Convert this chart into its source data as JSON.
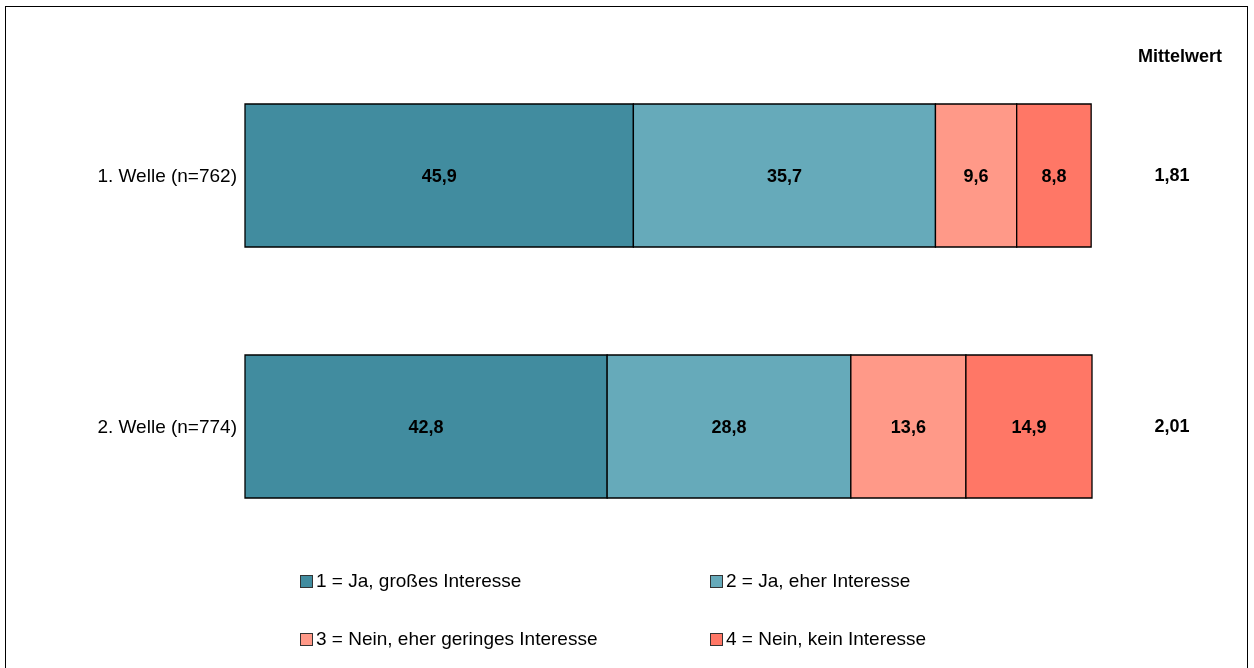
{
  "chart_data": {
    "type": "bar",
    "orientation": "horizontal",
    "stacked": true,
    "legend": "bottom",
    "grid": false,
    "categories": [
      "1. Welle (n=762)",
      "2. Welle (n=774)"
    ],
    "series": [
      {
        "name": "1 = Ja, großes Interesse",
        "color": "#418c9f",
        "values": [
          45.9,
          42.8
        ],
        "value_labels": [
          "45,9",
          "42,8"
        ]
      },
      {
        "name": "2 = Ja, eher Interesse",
        "color": "#66aaba",
        "values": [
          35.7,
          28.8
        ],
        "value_labels": [
          "35,7",
          "28,8"
        ]
      },
      {
        "name": "3 = Nein, eher geringes Interesse",
        "color": "#ff9988",
        "values": [
          9.6,
          13.6
        ],
        "value_labels": [
          "9,6",
          "13,6"
        ]
      },
      {
        "name": "4 = Nein, kein Interesse",
        "color": "#ff7766",
        "values": [
          8.8,
          14.9
        ],
        "value_labels": [
          "8,8",
          "14,9"
        ]
      }
    ],
    "annotations": [
      "Mittelwert",
      "1,81",
      "2,01"
    ]
  }
}
